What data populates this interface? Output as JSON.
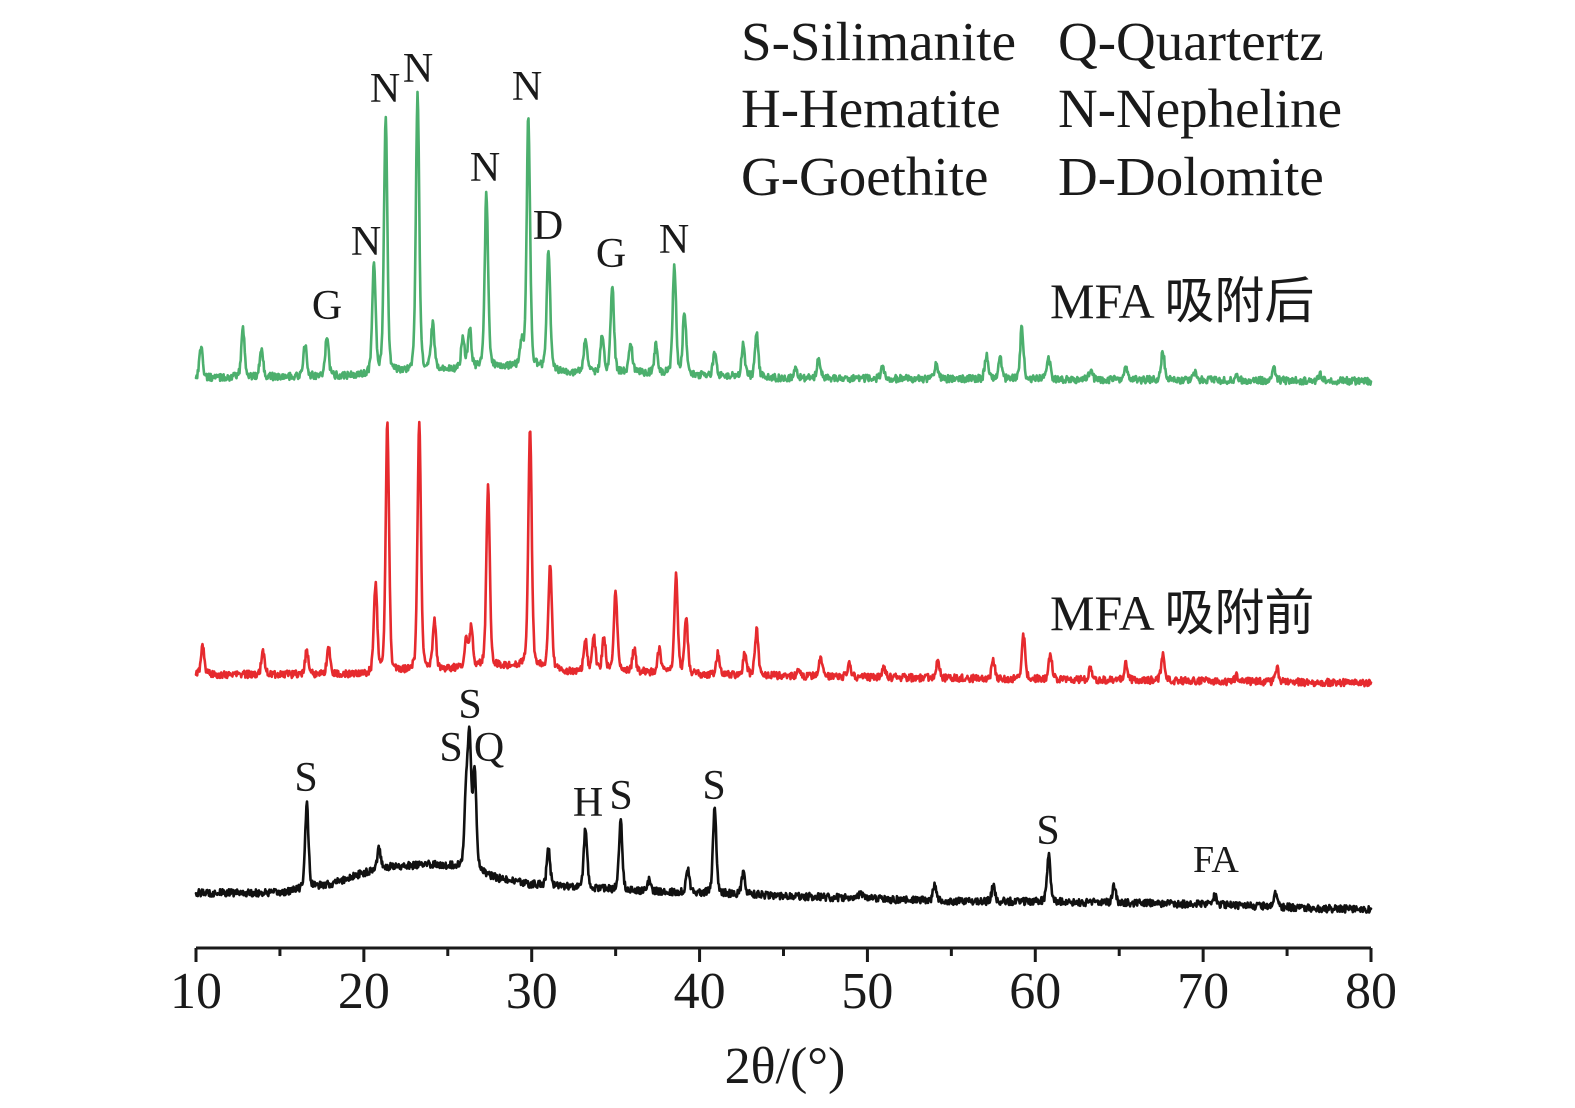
{
  "chart_data": {
    "type": "line",
    "xlabel": "2θ/(°)",
    "xlim": [
      10,
      80
    ],
    "xticks": [
      10,
      20,
      30,
      40,
      50,
      60,
      70,
      80
    ],
    "grid": false,
    "legend_position": "top-right",
    "legend": [
      "S-Silimanite",
      "Q-Quartertz",
      "H-Hematite",
      "N-Nepheline",
      "G-Goethite",
      "D-Dolomite"
    ],
    "series": [
      {
        "name": "MFA 吸附后",
        "color": "#4caf6d",
        "background": [
          [
            10,
            1
          ],
          [
            20,
            2
          ],
          [
            22,
            3
          ],
          [
            25,
            4
          ],
          [
            28,
            5
          ],
          [
            30,
            5
          ],
          [
            32,
            3
          ],
          [
            36,
            3
          ],
          [
            40,
            2
          ],
          [
            45,
            1
          ],
          [
            80,
            0
          ]
        ],
        "peaks": [
          [
            10.3,
            11
          ],
          [
            12.8,
            17
          ],
          [
            13.9,
            10
          ],
          [
            16.5,
            11
          ],
          [
            17.8,
            14
          ],
          [
            20.6,
            38
          ],
          [
            21.3,
            90
          ],
          [
            23.2,
            97
          ],
          [
            24.1,
            16
          ],
          [
            25.9,
            11
          ],
          [
            26.3,
            14
          ],
          [
            27.3,
            61
          ],
          [
            29.4,
            8
          ],
          [
            29.8,
            88
          ],
          [
            31.0,
            42
          ],
          [
            33.2,
            12
          ],
          [
            34.2,
            13
          ],
          [
            34.8,
            31
          ],
          [
            35.9,
            10
          ],
          [
            37.4,
            10
          ],
          [
            38.5,
            38
          ],
          [
            39.1,
            22
          ],
          [
            40.9,
            8
          ],
          [
            42.6,
            11
          ],
          [
            43.4,
            15
          ],
          [
            45.7,
            3.5
          ],
          [
            47.1,
            7
          ],
          [
            50.9,
            4
          ],
          [
            54.1,
            5
          ],
          [
            57.1,
            8.5
          ],
          [
            57.9,
            7.5
          ],
          [
            59.2,
            18
          ],
          [
            60.8,
            7.5
          ],
          [
            63.3,
            3.5
          ],
          [
            65.4,
            4
          ],
          [
            67.6,
            10
          ],
          [
            69.5,
            3
          ],
          [
            72.0,
            2
          ],
          [
            74.2,
            4.5
          ],
          [
            77.0,
            2
          ]
        ]
      },
      {
        "name": "MFA 吸附前",
        "color": "#e62a2e",
        "background": [
          [
            10,
            3
          ],
          [
            20,
            3
          ],
          [
            25,
            5
          ],
          [
            28,
            6
          ],
          [
            30,
            6
          ],
          [
            32,
            4
          ],
          [
            36,
            4
          ],
          [
            40,
            3
          ],
          [
            50,
            2
          ],
          [
            80,
            0
          ]
        ],
        "peaks": [
          [
            10.4,
            10
          ],
          [
            14.0,
            8
          ],
          [
            16.6,
            8.5
          ],
          [
            17.9,
            9.5
          ],
          [
            20.7,
            31
          ],
          [
            21.4,
            87
          ],
          [
            23.3,
            88
          ],
          [
            24.2,
            17
          ],
          [
            26.1,
            10
          ],
          [
            26.4,
            14
          ],
          [
            27.4,
            63
          ],
          [
            29.9,
            83
          ],
          [
            31.1,
            37
          ],
          [
            33.2,
            11
          ],
          [
            33.7,
            12
          ],
          [
            34.3,
            12
          ],
          [
            35.0,
            28
          ],
          [
            36.1,
            8
          ],
          [
            37.6,
            8.5
          ],
          [
            38.6,
            34.5
          ],
          [
            39.2,
            19.5
          ],
          [
            41.1,
            7.5
          ],
          [
            42.7,
            8
          ],
          [
            43.4,
            16
          ],
          [
            45.9,
            3
          ],
          [
            47.2,
            6.5
          ],
          [
            48.9,
            4.5
          ],
          [
            51.0,
            3.3
          ],
          [
            54.2,
            6.3
          ],
          [
            57.5,
            6.5
          ],
          [
            59.3,
            15
          ],
          [
            60.9,
            8.4
          ],
          [
            63.3,
            4.4
          ],
          [
            65.4,
            6
          ],
          [
            67.6,
            9
          ],
          [
            72.0,
            2
          ],
          [
            74.4,
            4.7
          ]
        ]
      },
      {
        "name": "FA",
        "color": "#111111",
        "background": [
          [
            10,
            6
          ],
          [
            15,
            6
          ],
          [
            18,
            9
          ],
          [
            21,
            15
          ],
          [
            24,
            16
          ],
          [
            26,
            15
          ],
          [
            28,
            11
          ],
          [
            30,
            9
          ],
          [
            35,
            7
          ],
          [
            40,
            6
          ],
          [
            45,
            5
          ],
          [
            50,
            4
          ],
          [
            55,
            3
          ],
          [
            60,
            3
          ],
          [
            70,
            2
          ],
          [
            80,
            0
          ]
        ],
        "peaks": [
          [
            16.6,
            30
          ],
          [
            20.9,
            7
          ],
          [
            26.1,
            26
          ],
          [
            26.3,
            43
          ],
          [
            26.6,
            35
          ],
          [
            31.0,
            13
          ],
          [
            33.2,
            21
          ],
          [
            35.3,
            24
          ],
          [
            37.0,
            4
          ],
          [
            39.3,
            8
          ],
          [
            40.9,
            30
          ],
          [
            42.6,
            7.5
          ],
          [
            49.6,
            2
          ],
          [
            54.0,
            5.5
          ],
          [
            57.5,
            5.5
          ],
          [
            60.8,
            17
          ],
          [
            64.7,
            6
          ],
          [
            70.7,
            3
          ],
          [
            74.3,
            4.5
          ]
        ]
      }
    ],
    "annotations": [
      {
        "series": 0,
        "x": 17.8,
        "text": "G"
      },
      {
        "series": 0,
        "x": 20.6,
        "text": "N"
      },
      {
        "series": 0,
        "x": 21.3,
        "text": "N"
      },
      {
        "series": 0,
        "x": 23.2,
        "text": "N"
      },
      {
        "series": 0,
        "x": 27.3,
        "text": "N"
      },
      {
        "series": 0,
        "x": 29.8,
        "text": "N"
      },
      {
        "series": 0,
        "x": 31.0,
        "text": "D"
      },
      {
        "series": 0,
        "x": 34.8,
        "text": "G"
      },
      {
        "series": 0,
        "x": 38.5,
        "text": "N"
      },
      {
        "series": 2,
        "x": 16.6,
        "text": "S"
      },
      {
        "series": 2,
        "x": 26.1,
        "text": "S"
      },
      {
        "series": 2,
        "x": 26.3,
        "text": "S"
      },
      {
        "series": 2,
        "x": 26.6,
        "text": "Q"
      },
      {
        "series": 2,
        "x": 33.2,
        "text": "H"
      },
      {
        "series": 2,
        "x": 35.3,
        "text": "S"
      },
      {
        "series": 2,
        "x": 40.9,
        "text": "S"
      },
      {
        "series": 2,
        "x": 60.8,
        "text": "S"
      }
    ]
  }
}
